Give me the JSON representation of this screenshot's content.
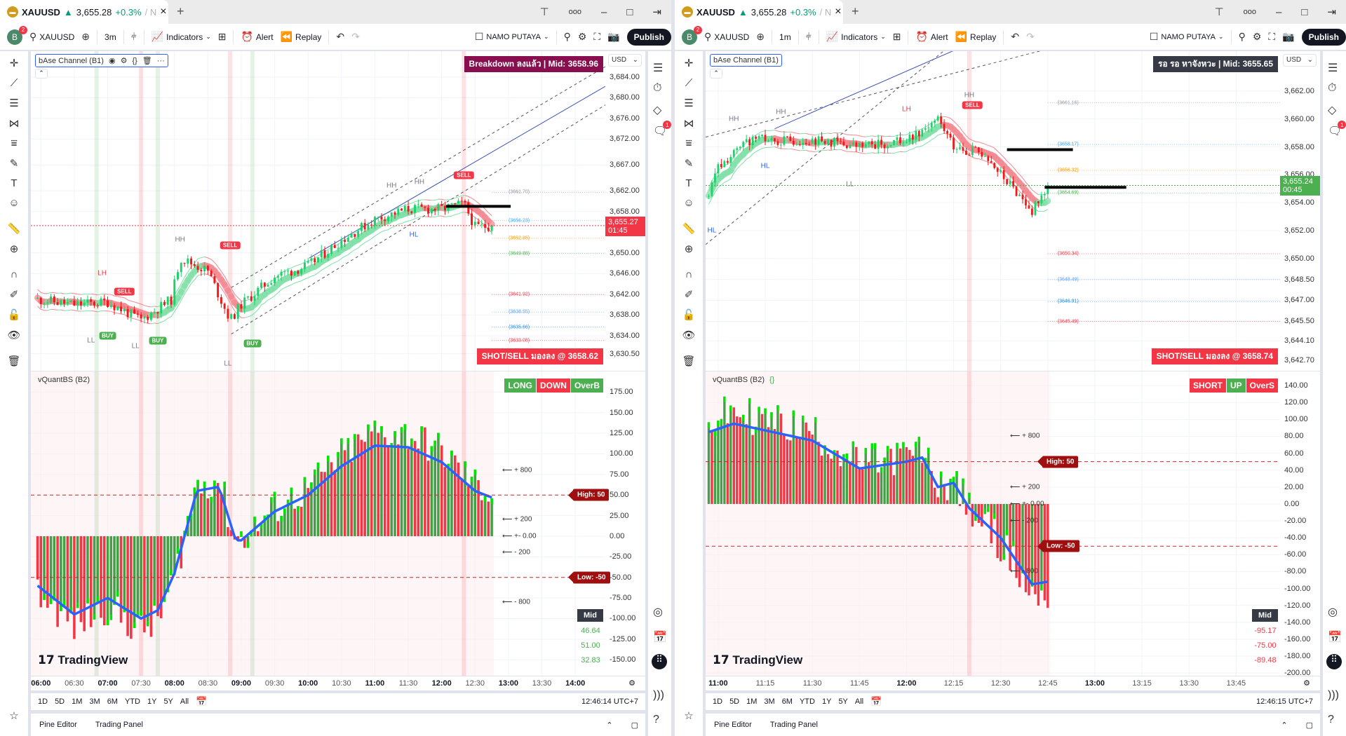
{
  "windows": [
    {
      "tab": {
        "symbol": "XAUUSD",
        "arrow": "▲",
        "price": "3,655.28",
        "change": "+0.3%",
        "suffix": "/ N",
        "close": "×",
        "new_tab": "+"
      },
      "toolbar": {
        "avatar": "B",
        "avatar_badge": "2",
        "symbol": "XAUUSD",
        "interval": "3m",
        "indicators": "Indicators",
        "alert": "Alert",
        "replay": "Replay",
        "layout": "NAMO PUTAYA",
        "publish": "Publish"
      },
      "main": {
        "legend": "bAse Channel (B1)",
        "status": "Breakdown ลงแล้ว | Mid: 3658.96",
        "status_color": "#880e4f",
        "signal": "SHOT/SELL มองลง @ 3658.62",
        "currency": "USD",
        "last_price": "3,655.27",
        "countdown": "01:45",
        "last_color": "#f23645"
      },
      "osc": {
        "legend": "vQuantBS (B2)",
        "badges": [
          {
            "text": "LONG",
            "color": "#4caf50"
          },
          {
            "text": "DOWN",
            "color": "#f23645"
          },
          {
            "text": "OverB",
            "color": "#4caf50"
          }
        ],
        "high": "High: 50",
        "low": "Low: -50",
        "mid": "Mid",
        "mid_values": [
          "46.64",
          "51.00",
          "32.83"
        ],
        "mid_color": "#4caf50"
      },
      "logo": "TradingView",
      "ranges": [
        "1D",
        "5D",
        "1M",
        "3M",
        "6M",
        "YTD",
        "1Y",
        "5Y",
        "All"
      ],
      "clock": "12:46:14 UTC+7",
      "bottom": {
        "pine": "Pine Editor",
        "trading": "Trading Panel"
      },
      "chat_badge": "1"
    },
    {
      "tab": {
        "symbol": "XAUUSD",
        "arrow": "▲",
        "price": "3,655.28",
        "change": "+0.3%",
        "suffix": "/ N",
        "close": "×",
        "new_tab": "+"
      },
      "toolbar": {
        "avatar": "B",
        "avatar_badge": "2",
        "symbol": "XAUUSD",
        "interval": "1m",
        "indicators": "Indicators",
        "alert": "Alert",
        "replay": "Replay",
        "layout": "NAMO PUTAYA",
        "publish": "Publish"
      },
      "main": {
        "legend": "bAse Channel (B1)",
        "status": "รอ รอ หาจังหวะ | Mid: 3655.65",
        "status_color": "#363a45",
        "signal": "SHOT/SELL มองลง @ 3658.74",
        "currency": "USD",
        "last_price": "3,655.24",
        "countdown": "00:45",
        "last_color": "#4caf50"
      },
      "osc": {
        "legend": "vQuantBS (B2)",
        "badges": [
          {
            "text": "SHORT",
            "color": "#f23645"
          },
          {
            "text": "UP",
            "color": "#4caf50"
          },
          {
            "text": "OverS",
            "color": "#f23645"
          }
        ],
        "high": "High: 50",
        "low": "Low: -50",
        "mid": "Mid",
        "mid_values": [
          "-95.17",
          "-75.00",
          "-89.48"
        ],
        "mid_color": "#f23645"
      },
      "logo": "TradingView",
      "ranges": [
        "1D",
        "5D",
        "1M",
        "3M",
        "6M",
        "YTD",
        "1Y",
        "5Y",
        "All"
      ],
      "clock": "12:46:15 UTC+7",
      "bottom": {
        "pine": "Pine Editor",
        "trading": "Trading Panel"
      },
      "chat_badge": "1"
    }
  ],
  "chart_data": [
    {
      "type": "candlestick",
      "symbol": "XAUUSD",
      "interval_min": 3,
      "x_range": [
        "05:51",
        "14:27"
      ],
      "first_bar": "05:57",
      "last_bar": "12:45",
      "ylim": [
        3627.2,
        3689.0
      ],
      "price_ticks": [
        "3,684.00",
        "3,680.00",
        "3,676.00",
        "3,672.00",
        "3,667.00",
        "3,662.00",
        "3,658.00",
        "3,650.00",
        "3,646.00",
        "3,642.00",
        "3,638.00",
        "3,634.00",
        "3,630.50"
      ],
      "last_price_value": 3655.27,
      "anchors": [
        [
          "05:57",
          3641
        ],
        [
          "06:30",
          3640
        ],
        [
          "07:00",
          3640.5
        ],
        [
          "07:30",
          3637
        ],
        [
          "07:57",
          3641
        ],
        [
          "08:05",
          3649
        ],
        [
          "08:30",
          3646.5
        ],
        [
          "08:50",
          3637
        ],
        [
          "09:00",
          3640
        ],
        [
          "09:30",
          3645.5
        ],
        [
          "10:00",
          3647.5
        ],
        [
          "10:30",
          3652.5
        ],
        [
          "11:00",
          3656.5
        ],
        [
          "11:30",
          3658.5
        ],
        [
          "12:00",
          3658.5
        ],
        [
          "12:20",
          3659.5
        ],
        [
          "12:30",
          3655
        ],
        [
          "12:45",
          3655.27
        ]
      ],
      "channel": {
        "upper": [
          [
            "08:51",
            3643.3
          ],
          [
            "14:27",
            3686
          ]
        ],
        "mid": [
          [
            "10:01",
            3649
          ],
          [
            "14:27",
            3682.2
          ]
        ],
        "lower": [
          [
            "08:51",
            3634.3
          ],
          [
            "14:27",
            3678.6
          ]
        ]
      },
      "hlines": [
        {
          "from": "12:04",
          "to": "13:02",
          "price": 3659
        }
      ],
      "levels": [
        {
          "text": "(3661.70)",
          "price": 3661.7,
          "color": "#9598a1"
        },
        {
          "text": "(3656.23)",
          "price": 3656.23,
          "color": "#42a5f5"
        },
        {
          "text": "(3652.85)",
          "price": 3652.85,
          "color": "#ff9800"
        },
        {
          "text": "(3649.88)",
          "price": 3649.88,
          "color": "#4caf50"
        },
        {
          "text": "(3641.92)",
          "price": 3641.92,
          "color": "#f23645"
        },
        {
          "text": "(3638.55)",
          "price": 3638.55,
          "color": "#5b9cf6"
        },
        {
          "text": "(3635.66)",
          "price": 3635.66,
          "color": "#1e88e5"
        },
        {
          "text": "(3633.08)",
          "price": 3633.08,
          "color": "#f23645"
        }
      ],
      "markers": [
        {
          "text": "LH",
          "t": "06:55",
          "price": 3646
        },
        {
          "text": "LL",
          "t": "06:45",
          "price": 3633
        },
        {
          "text": "SELL",
          "t": "07:15",
          "price": 3642.5,
          "kind": "sell"
        },
        {
          "text": "BUY",
          "t": "07:00",
          "price": 3634,
          "kind": "buy"
        },
        {
          "text": "LL",
          "t": "07:25",
          "price": 3632
        },
        {
          "text": "BUY",
          "t": "07:45",
          "price": 3633,
          "kind": "buy"
        },
        {
          "text": "HH",
          "t": "08:05",
          "price": 3652.5
        },
        {
          "text": "SELL",
          "t": "08:50",
          "price": 3651.5,
          "kind": "sell"
        },
        {
          "text": "LL",
          "t": "08:48",
          "price": 3628.5
        },
        {
          "text": "BUY",
          "t": "09:10",
          "price": 3632.5,
          "kind": "buy"
        },
        {
          "text": "HH",
          "t": "11:15",
          "price": 3663
        },
        {
          "text": "HH",
          "t": "11:40",
          "price": 3663.6
        },
        {
          "text": "HL",
          "t": "11:35",
          "price": 3653.5
        },
        {
          "text": "SELL",
          "t": "12:20",
          "price": 3665,
          "kind": "sell"
        }
      ],
      "sell_lines": [
        "07:30",
        "08:50",
        "12:20"
      ],
      "buy_lines": [
        "06:50",
        "07:45",
        "09:10"
      ],
      "osc": {
        "ylim": [
          -169.4,
          200
        ],
        "ticks": [
          "175.00",
          "150.00",
          "125.00",
          "100.00",
          "75.00",
          "50.00",
          "25.00",
          "0.00",
          "-25.00",
          "-50.00",
          "-75.00",
          "-100.00",
          "-125.00",
          "-150.00"
        ],
        "high": 50,
        "low": -50,
        "arrows": [
          {
            "text": "⟵ + 800",
            "v": 800
          },
          {
            "text": "⟵ + 200",
            "v": 200
          },
          {
            "text": "⟵ +- 0.00",
            "v": 0
          },
          {
            "text": "⟵ - 200",
            "v": -200
          },
          {
            "text": "⟵ - 800",
            "v": -800
          }
        ],
        "line_anchors": [
          [
            "05:57",
            -60
          ],
          [
            "06:30",
            -95
          ],
          [
            "07:00",
            -75
          ],
          [
            "07:30",
            -100
          ],
          [
            "07:45",
            -90
          ],
          [
            "08:00",
            -45
          ],
          [
            "08:20",
            55
          ],
          [
            "08:40",
            60
          ],
          [
            "08:55",
            -5
          ],
          [
            "09:00",
            -5
          ],
          [
            "09:30",
            30
          ],
          [
            "10:00",
            50
          ],
          [
            "10:30",
            85
          ],
          [
            "11:00",
            110
          ],
          [
            "11:30",
            108
          ],
          [
            "12:00",
            90
          ],
          [
            "12:30",
            55
          ],
          [
            "12:45",
            47
          ]
        ]
      },
      "time_ticks": [
        "06:00",
        "06:30",
        "07:00",
        "07:30",
        "08:00",
        "08:30",
        "09:00",
        "09:30",
        "10:00",
        "10:30",
        "11:00",
        "11:30",
        "12:00",
        "12:30",
        "13:00",
        "13:30",
        "14:00"
      ]
    },
    {
      "type": "candlestick",
      "symbol": "XAUUSD",
      "interval_min": 1,
      "x_range": [
        "10:56",
        "13:59"
      ],
      "first_bar": "10:57",
      "last_bar": "12:45",
      "ylim": [
        3641.95,
        3664.86
      ],
      "price_ticks": [
        "3,662.00",
        "3,660.00",
        "3,658.00",
        "3,656.00",
        "3,654.00",
        "3,652.00",
        "3,650.00",
        "3,648.50",
        "3,647.00",
        "3,645.50",
        "3,644.10",
        "3,642.70"
      ],
      "last_price_value": 3655.24,
      "anchors": [
        [
          "10:57",
          3654.5
        ],
        [
          "11:00",
          3656.5
        ],
        [
          "11:10",
          3658.5
        ],
        [
          "11:30",
          3658.5
        ],
        [
          "11:45",
          3658
        ],
        [
          "12:00",
          3658.5
        ],
        [
          "12:10",
          3660
        ],
        [
          "12:15",
          3658
        ],
        [
          "12:25",
          3657.5
        ],
        [
          "12:30",
          3656
        ],
        [
          "12:40",
          3653.5
        ],
        [
          "12:45",
          3655.24
        ]
      ],
      "channel": {
        "upper": [
          [
            "10:56",
            3658.7
          ],
          [
            "12:43",
            3664.9
          ]
        ],
        "mid": [
          [
            "11:18",
            3659.3
          ],
          [
            "12:15",
            3664.9
          ]
        ],
        "lower": [
          [
            "10:56",
            3651
          ],
          [
            "12:12",
            3664.9
          ]
        ]
      },
      "hlines": [
        {
          "from": "12:32",
          "to": "12:53",
          "price": 3657.8
        },
        {
          "from": "12:44",
          "to": "13:10",
          "price": 3655.1
        }
      ],
      "levels": [
        {
          "text": "(3661.16)",
          "price": 3661.16,
          "color": "#9598a1"
        },
        {
          "text": "(3658.17)",
          "price": 3658.17,
          "color": "#42a5f5"
        },
        {
          "text": "(3656.32)",
          "price": 3656.32,
          "color": "#ff9800"
        },
        {
          "text": "(3654.69)",
          "price": 3654.69,
          "color": "#4caf50"
        },
        {
          "text": "(3650.34)",
          "price": 3650.34,
          "color": "#f23645"
        },
        {
          "text": "(3648.49)",
          "price": 3648.49,
          "color": "#5b9cf6"
        },
        {
          "text": "(3646.91)",
          "price": 3646.91,
          "color": "#1e88e5"
        },
        {
          "text": "(3645.49)",
          "price": 3645.49,
          "color": "#f23645"
        }
      ],
      "markers": [
        {
          "text": "HL",
          "t": "10:58",
          "price": 3652
        },
        {
          "text": "HH",
          "t": "11:05",
          "price": 3660
        },
        {
          "text": "HH",
          "t": "11:20",
          "price": 3660.5
        },
        {
          "text": "HL",
          "t": "11:15",
          "price": 3656.6
        },
        {
          "text": "LL",
          "t": "11:42",
          "price": 3655.3
        },
        {
          "text": "LH",
          "t": "12:00",
          "price": 3660.7
        },
        {
          "text": "HH",
          "t": "12:20",
          "price": 3661.7
        },
        {
          "text": "SELL",
          "t": "12:21",
          "price": 3661,
          "kind": "sell"
        }
      ],
      "sell_lines": [
        "12:20"
      ],
      "buy_lines": [],
      "osc": {
        "ylim": [
          -203.2,
          156.7
        ],
        "ticks": [
          "140.00",
          "120.00",
          "100.00",
          "80.00",
          "60.00",
          "40.00",
          "20.00",
          "0.00",
          "-20.00",
          "-40.00",
          "-60.00",
          "-80.00",
          "-100.00",
          "-120.00",
          "-140.00",
          "-160.00",
          "-180.00",
          "-200.00"
        ],
        "high": 50,
        "low": -50,
        "arrows": [
          {
            "text": "⟵ + 800",
            "v": 800
          },
          {
            "text": "⟵ + 200",
            "v": 200
          },
          {
            "text": "⟵ +- 0.00",
            "v": 0
          },
          {
            "text": "⟵ - 200",
            "v": -200
          },
          {
            "text": "⟵ - 800",
            "v": -800
          }
        ],
        "line_anchors": [
          [
            "10:57",
            85
          ],
          [
            "11:05",
            95
          ],
          [
            "11:30",
            75
          ],
          [
            "11:45",
            42
          ],
          [
            "12:00",
            50
          ],
          [
            "12:05",
            55
          ],
          [
            "12:10",
            20
          ],
          [
            "12:15",
            25
          ],
          [
            "12:20",
            -5
          ],
          [
            "12:30",
            -40
          ],
          [
            "12:40",
            -95
          ],
          [
            "12:45",
            -92
          ]
        ]
      },
      "time_ticks": [
        "11:00",
        "11:15",
        "11:30",
        "11:45",
        "12:00",
        "12:15",
        "12:30",
        "12:45",
        "13:00",
        "13:15",
        "13:30",
        "13:45"
      ]
    }
  ]
}
